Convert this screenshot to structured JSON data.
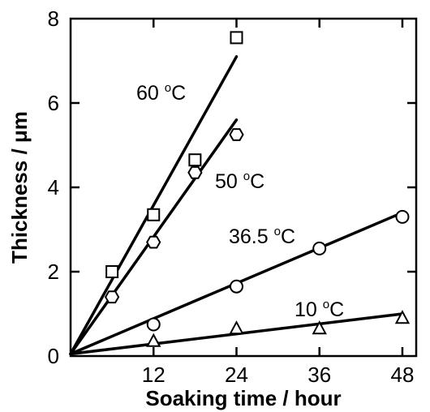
{
  "chart_data": {
    "type": "scatter",
    "title": "",
    "xlabel": "Soaking time / hour",
    "ylabel": "Thickness / μm",
    "xlim": [
      0,
      50
    ],
    "ylim": [
      0,
      8
    ],
    "xticks": [
      12,
      24,
      36,
      48
    ],
    "xtick_labels": [
      "12",
      "24",
      "36",
      "48"
    ],
    "yticks": [
      0,
      2,
      4,
      6,
      8
    ],
    "ytick_labels": [
      "0",
      "2",
      "4",
      "6",
      "8"
    ],
    "grid": false,
    "legend": "none",
    "series": [
      {
        "name": "60 °C",
        "label": {
          "text": "60 °C",
          "prefix": "60 ",
          "deg": "o",
          "unit": "C"
        },
        "marker": "square",
        "points": [
          {
            "x": 6,
            "y": 2.0
          },
          {
            "x": 12,
            "y": 3.35
          },
          {
            "x": 18,
            "y": 4.65
          },
          {
            "x": 24,
            "y": 7.55
          }
        ],
        "fit_line": {
          "x": [
            0,
            24
          ],
          "y": [
            0.05,
            7.1
          ]
        }
      },
      {
        "name": "50 °C",
        "label": {
          "text": "50 °C",
          "prefix": "50 ",
          "deg": "o",
          "unit": "C"
        },
        "marker": "hexagon",
        "points": [
          {
            "x": 6,
            "y": 1.4
          },
          {
            "x": 12,
            "y": 2.7
          },
          {
            "x": 18,
            "y": 4.35
          },
          {
            "x": 24,
            "y": 5.25
          }
        ],
        "fit_line": {
          "x": [
            0,
            24
          ],
          "y": [
            0.05,
            5.6
          ]
        }
      },
      {
        "name": "36.5 °C",
        "label": {
          "text": "36.5 °C",
          "prefix": "36.5 ",
          "deg": "o",
          "unit": "C"
        },
        "marker": "circle",
        "points": [
          {
            "x": 12,
            "y": 0.75
          },
          {
            "x": 24,
            "y": 1.65
          },
          {
            "x": 36,
            "y": 2.55
          },
          {
            "x": 48,
            "y": 3.3
          }
        ],
        "fit_line": {
          "x": [
            0,
            48
          ],
          "y": [
            0.05,
            3.4
          ]
        }
      },
      {
        "name": "10 °C",
        "label": {
          "text": "10 °C",
          "prefix": "10 ",
          "deg": "o",
          "unit": "C"
        },
        "marker": "triangle",
        "points": [
          {
            "x": 12,
            "y": 0.35
          },
          {
            "x": 24,
            "y": 0.65
          },
          {
            "x": 36,
            "y": 0.65
          },
          {
            "x": 48,
            "y": 0.9
          }
        ],
        "fit_line": {
          "x": [
            0,
            48
          ],
          "y": [
            0.05,
            1.0
          ]
        }
      }
    ]
  }
}
